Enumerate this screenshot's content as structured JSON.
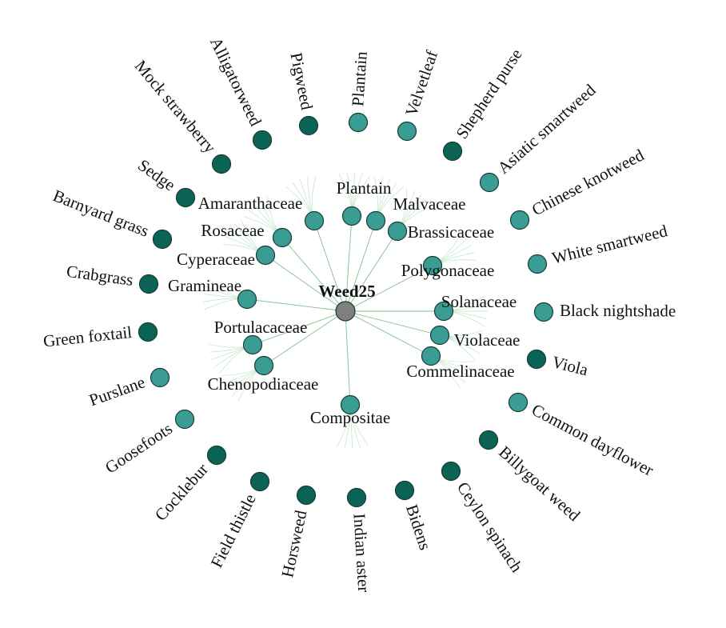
{
  "root": {
    "label": "Weed25"
  },
  "families": [
    {
      "label": "Amaranthaceae"
    },
    {
      "label": "Rosaceae"
    },
    {
      "label": "Cyperaceae"
    },
    {
      "label": "Gramineae"
    },
    {
      "label": "Portulacaceae"
    },
    {
      "label": "Chenopodiaceae"
    },
    {
      "label": "Plantain"
    },
    {
      "label": "Malvaceae"
    },
    {
      "label": "Brassicaceae"
    },
    {
      "label": "Polygonaceae"
    },
    {
      "label": "Solanaceae"
    },
    {
      "label": "Violaceae"
    },
    {
      "label": "Commelinaceae"
    },
    {
      "label": "Compositae"
    }
  ],
  "species": [
    {
      "label": "Pigweed"
    },
    {
      "label": "Plantain"
    },
    {
      "label": "Velvetleaf"
    },
    {
      "label": "Shepherd purse"
    },
    {
      "label": "Asiatic smartweed"
    },
    {
      "label": "Chinese knotweed"
    },
    {
      "label": "White smartweed"
    },
    {
      "label": "Black nightshade"
    },
    {
      "label": "Viola"
    },
    {
      "label": "Common dayflower"
    },
    {
      "label": "Billygoat weed"
    },
    {
      "label": "Ceylon spinach"
    },
    {
      "label": "Bidens"
    },
    {
      "label": "Indian aster"
    },
    {
      "label": "Horsweed"
    },
    {
      "label": "Field thistle"
    },
    {
      "label": "Cocklebur"
    },
    {
      "label": "Goosefoots"
    },
    {
      "label": "Purslane"
    },
    {
      "label": "Green foxtail"
    },
    {
      "label": "Crabgrass"
    },
    {
      "label": "Barnyard grass"
    },
    {
      "label": "Sedge"
    },
    {
      "label": "Mock strawberry"
    },
    {
      "label": "Alligatorweed"
    }
  ]
}
